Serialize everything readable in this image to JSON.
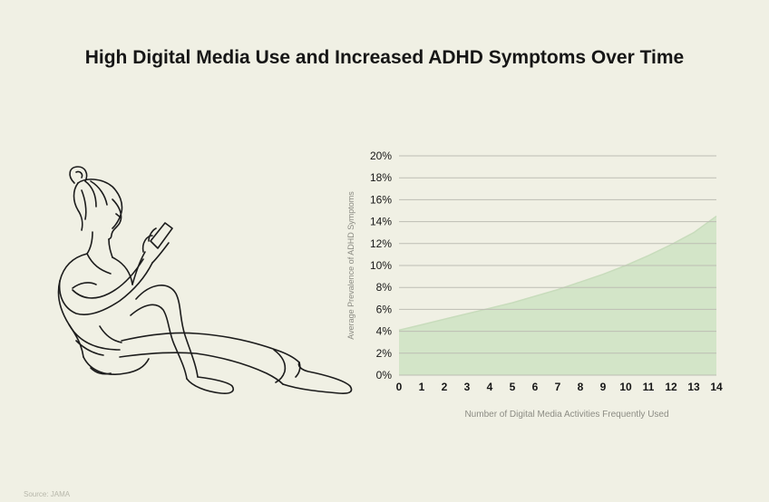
{
  "title": "High Digital Media Use and Increased ADHD Symptoms Over Time",
  "source": "Source: JAMA",
  "colors": {
    "background": "#f0f0e4",
    "area_fill": "#d3e5c8",
    "area_stroke": "#c8dcbc",
    "grid": "#bdbdb3",
    "text": "#161616",
    "axis_label": "#8c8c84"
  },
  "illustration": {
    "icon": "woman-reading-phone-illustration"
  },
  "chart_data": {
    "type": "area",
    "title": "High Digital Media Use and Increased ADHD Symptoms Over Time",
    "xlabel": "Number of Digital Media Activities Frequently Used",
    "ylabel": "Average Prevalence of ADHD Symptoms",
    "x": [
      0,
      1,
      2,
      3,
      4,
      5,
      6,
      7,
      8,
      9,
      10,
      11,
      12,
      13,
      14
    ],
    "xticks": [
      "0",
      "1",
      "2",
      "3",
      "4",
      "5",
      "6",
      "7",
      "8",
      "9",
      "10",
      "11",
      "12",
      "13",
      "14"
    ],
    "values": [
      4.1,
      4.6,
      5.1,
      5.6,
      6.1,
      6.6,
      7.2,
      7.8,
      8.5,
      9.2,
      10.0,
      10.9,
      11.9,
      13.0,
      14.5
    ],
    "yticks": [
      "0%",
      "2%",
      "4%",
      "6%",
      "8%",
      "10%",
      "12%",
      "14%",
      "16%",
      "18%",
      "20%"
    ],
    "ylim": [
      0,
      20
    ],
    "xlim": [
      0,
      14
    ],
    "grid": true,
    "legend": "none"
  }
}
